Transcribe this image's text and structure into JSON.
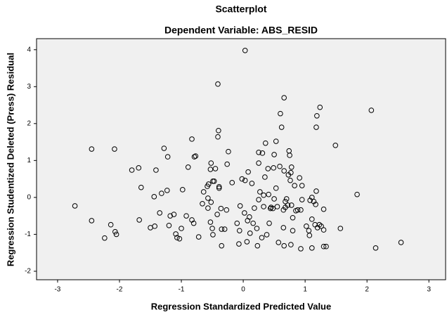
{
  "chart_data": {
    "type": "scatter",
    "title": "Scatterplot",
    "subtitle": "Dependent Variable: ABS_RESID",
    "x_label": "Regression Standardized Predicted Value",
    "y_label": "Regression Studentized Deleted (Press) Residual",
    "xlim": [
      -3.34,
      3.27
    ],
    "ylim": [
      -2.23,
      4.3
    ],
    "xticks": [
      -3,
      -2,
      -1,
      0,
      1,
      2,
      3
    ],
    "yticks": [
      -2,
      -1,
      0,
      1,
      2,
      3,
      4
    ],
    "color": "#000000",
    "x": [
      -2.72,
      -2.45,
      -2.45,
      -2.08,
      -2.14,
      -2.07,
      -2.05,
      -2.24,
      -1.8,
      -1.69,
      -1.65,
      -1.68,
      -1.41,
      -1.44,
      -1.5,
      -1.43,
      -1.35,
      -1.28,
      -1.22,
      -1.23,
      -1.32,
      -1.2,
      -1.18,
      -1.12,
      -1.09,
      -1.07,
      -1.03,
      -1.0,
      -0.98,
      -0.92,
      -0.89,
      -0.83,
      -0.77,
      -0.79,
      -0.83,
      -0.8,
      -0.72,
      -0.66,
      -0.64,
      -0.58,
      -0.56,
      -0.57,
      -0.52,
      -0.53,
      -0.49,
      -0.47,
      -0.45,
      -0.57,
      -0.52,
      -0.53,
      -0.5,
      -0.49,
      -0.42,
      -0.41,
      -0.4,
      -0.41,
      -0.39,
      -0.39,
      -0.36,
      -0.35,
      -0.35,
      -0.3,
      -0.26,
      -0.24,
      -0.27,
      -0.18,
      -0.1,
      -0.07,
      -0.06,
      -0.05,
      -0.02,
      0.02,
      0.03,
      0.03,
      0.06,
      0.08,
      0.07,
      0.1,
      0.11,
      0.14,
      0.16,
      0.18,
      0.22,
      0.23,
      0.25,
      0.25,
      0.25,
      0.27,
      0.3,
      0.31,
      0.33,
      0.33,
      0.35,
      0.36,
      0.38,
      0.4,
      0.41,
      0.42,
      0.44,
      0.48,
      0.45,
      0.49,
      0.5,
      0.5,
      0.53,
      0.53,
      0.55,
      0.57,
      0.59,
      0.6,
      0.62,
      0.65,
      0.65,
      0.66,
      0.66,
      0.66,
      0.68,
      0.68,
      0.7,
      0.72,
      0.73,
      0.74,
      0.75,
      0.76,
      0.77,
      0.77,
      0.78,
      0.78,
      0.8,
      0.8,
      0.83,
      0.85,
      0.91,
      0.93,
      0.95,
      0.95,
      0.88,
      0.93,
      1.02,
      1.06,
      1.07,
      1.08,
      1.11,
      1.11,
      1.11,
      1.14,
      1.16,
      1.17,
      1.18,
      1.18,
      1.19,
      1.2,
      1.23,
      1.24,
      1.26,
      1.3,
      1.3,
      1.34,
      1.3,
      1.49,
      1.57,
      1.84,
      2.07,
      2.14,
      2.55
    ],
    "values": [
      -0.23,
      1.31,
      -0.63,
      1.31,
      -0.74,
      -0.93,
      -1.0,
      -1.1,
      0.74,
      0.8,
      0.27,
      -0.61,
      0.74,
      0.02,
      -0.82,
      -0.78,
      -0.42,
      1.33,
      1.1,
      0.19,
      0.11,
      -0.76,
      -0.5,
      -0.46,
      -0.99,
      -1.09,
      -1.12,
      -0.84,
      0.21,
      -0.5,
      0.82,
      1.58,
      1.12,
      1.1,
      -0.61,
      -0.7,
      -1.07,
      -0.17,
      0.15,
      0.3,
      0.36,
      -0.02,
      0.93,
      0.76,
      0.44,
      0.44,
      0.78,
      -0.29,
      -0.13,
      -0.67,
      -0.84,
      -1.01,
      -0.46,
      3.07,
      1.81,
      1.64,
      0.29,
      0.25,
      -0.3,
      -0.86,
      -1.31,
      -0.86,
      0.9,
      1.24,
      -0.34,
      0.4,
      -0.7,
      -1.26,
      -0.9,
      -0.23,
      0.5,
      -0.42,
      3.98,
      0.46,
      -1.2,
      0.69,
      -0.63,
      -0.53,
      -0.97,
      0.38,
      -0.7,
      -0.29,
      -0.84,
      -1.31,
      -0.06,
      0.93,
      1.22,
      0.15,
      -1.09,
      1.2,
      0.06,
      -0.25,
      0.55,
      1.47,
      -1.01,
      0.78,
      0.08,
      -0.7,
      -0.3,
      -0.3,
      -0.27,
      0.8,
      1.16,
      -0.04,
      1.52,
      0.25,
      -0.25,
      -1.22,
      0.84,
      2.27,
      1.9,
      -0.34,
      -0.82,
      2.7,
      -1.31,
      0.72,
      -0.27,
      -0.11,
      -0.04,
      -0.21,
      0.61,
      1.26,
      1.14,
      0.46,
      -1.28,
      0.67,
      0.82,
      -0.21,
      -0.9,
      -0.55,
      0.32,
      -0.36,
      0.53,
      -1.39,
      0.32,
      -0.06,
      -0.34,
      -0.34,
      -0.78,
      -0.9,
      -1.03,
      -0.08,
      0.0,
      -0.59,
      -1.37,
      -0.11,
      -0.74,
      -0.19,
      0.17,
      1.9,
      2.21,
      -0.82,
      -0.74,
      2.44,
      -0.78,
      -1.33,
      -0.88,
      -1.33,
      -0.32,
      1.41,
      -0.84,
      0.08,
      2.36,
      -1.37,
      -1.22
    ]
  }
}
